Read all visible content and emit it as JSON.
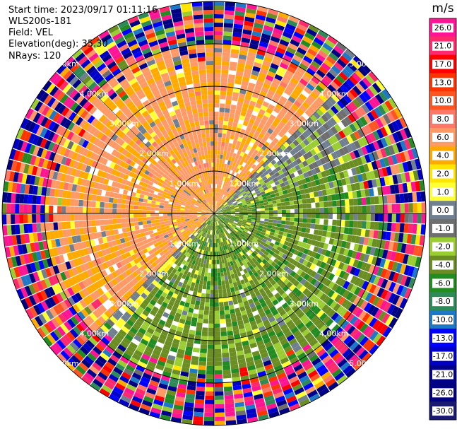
{
  "header": {
    "start_time": "Start time: 2023/09/17 01:11:16",
    "station": "WLS200s-181",
    "field": "Field: VEL",
    "elevation": "Elevation(deg): 35.30",
    "nrays": "NRays: 120"
  },
  "chart_data": {
    "type": "heatmap",
    "projection": "polar-ppi",
    "title": "",
    "field": "VEL",
    "units": "m/s",
    "elevation_deg": 35.3,
    "n_rays": 120,
    "max_range_km": 5.0,
    "range_rings_km": [
      1.0,
      2.0,
      3.0,
      4.0,
      5.0
    ],
    "range_labels": [
      "1.00km",
      "2.00km",
      "3.00km",
      "4.00km",
      "5.00km"
    ],
    "sector_summary": [
      {
        "azimuth_from_deg": 225,
        "azimuth_to_deg": 45,
        "dominant_velocity_ms": 4.5,
        "note": "orange/yellow (away)"
      },
      {
        "azimuth_from_deg": 45,
        "azimuth_to_deg": 70,
        "dominant_velocity_ms": -1.5,
        "note": "light green"
      },
      {
        "azimuth_from_deg": 70,
        "azimuth_to_deg": 220,
        "dominant_velocity_ms": -5.0,
        "note": "green (toward)"
      },
      {
        "azimuth_from_deg": 220,
        "azimuth_to_deg": 250,
        "dominant_velocity_ms": 0.0,
        "note": "grey / near zero"
      }
    ],
    "noise_beyond_km": 4.0,
    "colorbar": {
      "label": "m/s",
      "ticks": [
        "26.0",
        "21.0",
        "17.0",
        "13.0",
        "10.0",
        "8.0",
        "6.0",
        "4.0",
        "2.0",
        "1.0",
        "0.0",
        "-1.0",
        "-2.0",
        "-4.0",
        "-6.0",
        "-8.0",
        "-10.0",
        "-13.0",
        "-17.0",
        "-21.0",
        "-26.0",
        "-30.0"
      ],
      "colors": [
        "#ff1493",
        "#ff2a6d",
        "#ff0000",
        "#ff3300",
        "#ff5522",
        "#ff7766",
        "#ff9966",
        "#ffaa00",
        "#ffe600",
        "#ffff33",
        "#708090",
        "#6e6e6e",
        "#9acd32",
        "#6b8e23",
        "#228b22",
        "#2e8b57",
        "#1e78c8",
        "#0000ff",
        "#0000c8",
        "#00008b",
        "#000080",
        "#191970"
      ]
    }
  }
}
